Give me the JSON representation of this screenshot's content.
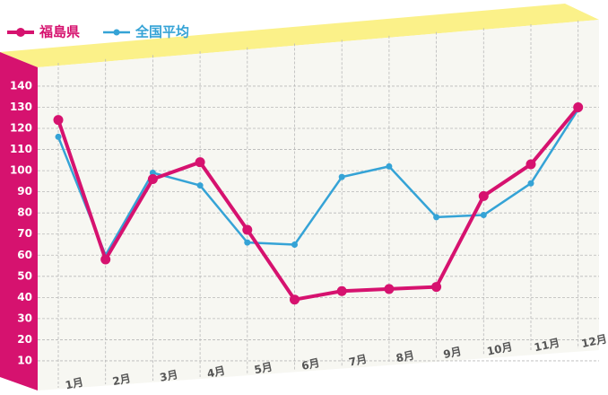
{
  "chart_data": {
    "type": "line",
    "categories": [
      "1月",
      "2月",
      "3月",
      "4月",
      "5月",
      "6月",
      "7月",
      "8月",
      "9月",
      "10月",
      "11月",
      "12月"
    ],
    "series": [
      {
        "name": "福島県",
        "color": "#d6126f",
        "values": [
          124,
          58,
          96,
          104,
          72,
          39,
          43,
          44,
          45,
          88,
          103,
          130
        ]
      },
      {
        "name": "全国平均",
        "color": "#35a3d6",
        "values": [
          116,
          60,
          99,
          93,
          66,
          65,
          97,
          102,
          78,
          79,
          94,
          129
        ]
      }
    ],
    "ylim": [
      0,
      150
    ],
    "yticks": [
      10,
      20,
      30,
      40,
      50,
      60,
      70,
      80,
      90,
      100,
      110,
      120,
      130,
      140
    ],
    "grid": true
  }
}
